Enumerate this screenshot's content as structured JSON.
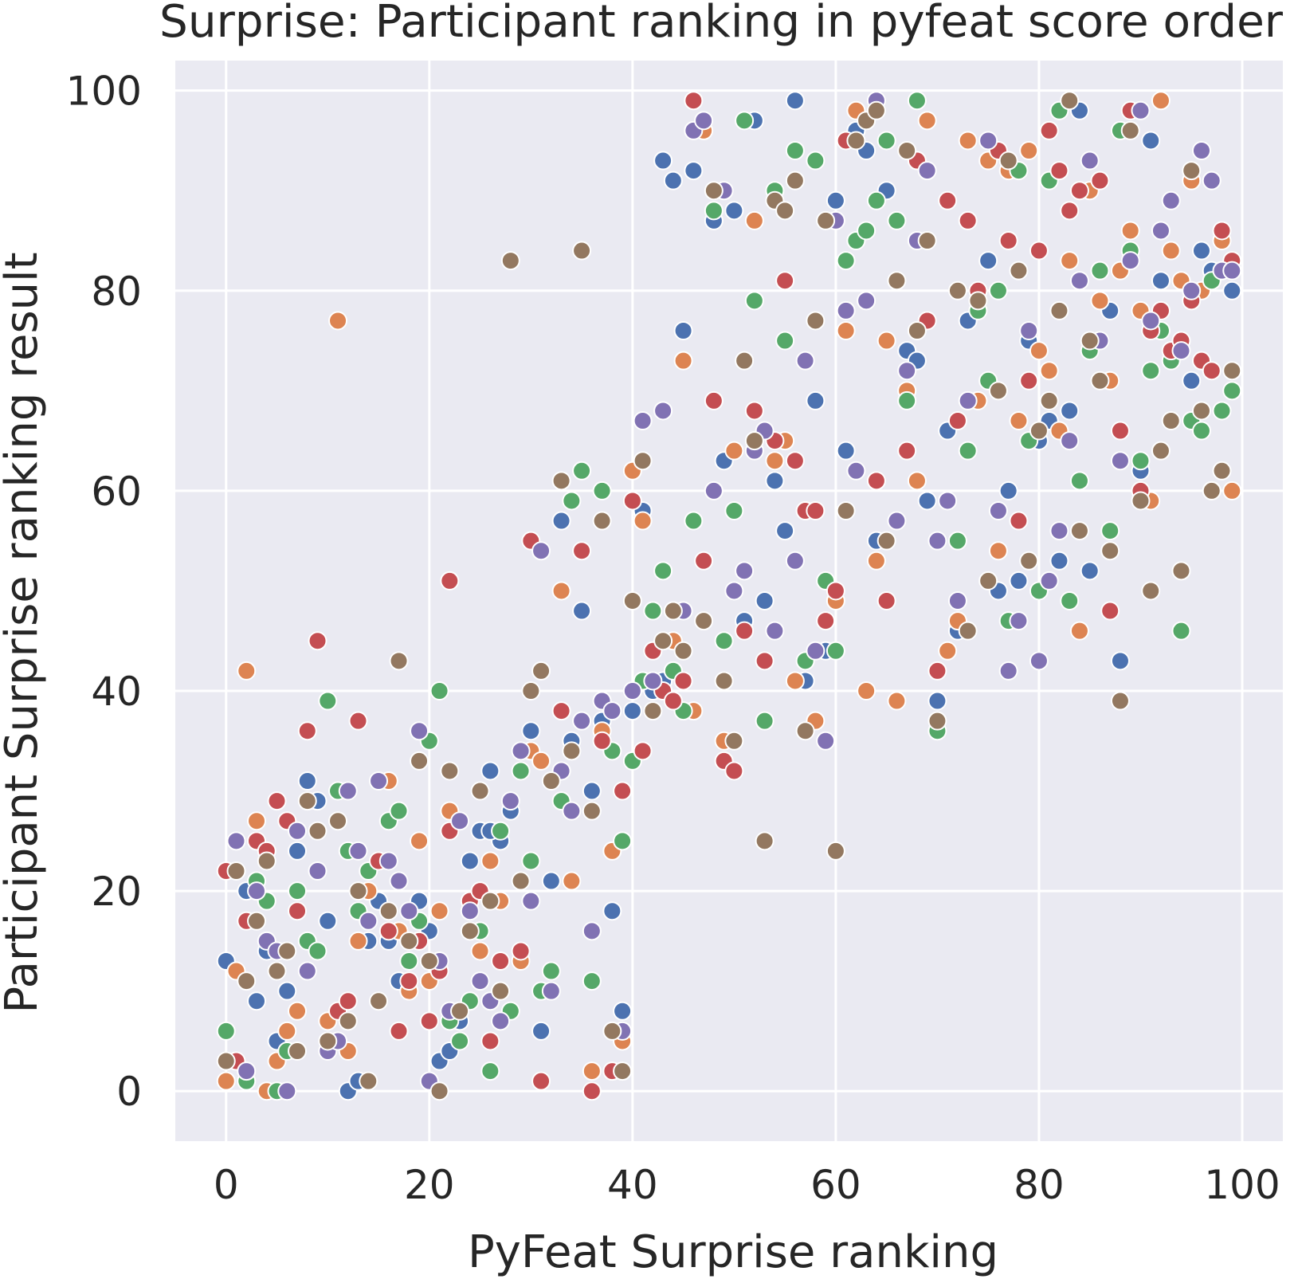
{
  "chart_data": {
    "type": "scatter",
    "title": "Surprise: Participant ranking in pyfeat score order",
    "xlabel": "PyFeat Surprise ranking",
    "ylabel": "Participant Surprise ranking result",
    "xlim": [
      -5,
      104
    ],
    "ylim": [
      -5,
      103
    ],
    "xticks": [
      0,
      20,
      40,
      60,
      80,
      100
    ],
    "yticks": [
      0,
      20,
      40,
      60,
      80,
      100
    ],
    "grid": true,
    "legend": "none",
    "colors": [
      "#4c72b0",
      "#dd8452",
      "#55a868",
      "#c44e52",
      "#8172b3",
      "#937860"
    ],
    "series": [
      {
        "color": "#4c72b0",
        "x": [
          0,
          2,
          3,
          4,
          6,
          5,
          8,
          9,
          10,
          12,
          13,
          15,
          16,
          17,
          20,
          21,
          22,
          23,
          24,
          25,
          26,
          27,
          28,
          30,
          31,
          32,
          33,
          34,
          36,
          37,
          38,
          39,
          41,
          42,
          43,
          44,
          45,
          46,
          48,
          49,
          50,
          51,
          52,
          53,
          54,
          55,
          57,
          58,
          59,
          60,
          61,
          62,
          63,
          64,
          65,
          67,
          68,
          69,
          70,
          71,
          72,
          73,
          75,
          76,
          77,
          78,
          79,
          80,
          81,
          82,
          83,
          84,
          85,
          87,
          88,
          90,
          91,
          92,
          95,
          96,
          97,
          99,
          35,
          43,
          44,
          52,
          56,
          40,
          26,
          7,
          14,
          19
        ],
        "y": [
          13,
          20,
          9,
          14,
          10,
          5,
          31,
          29,
          17,
          0,
          1,
          19,
          15,
          11,
          16,
          3,
          4,
          7,
          23,
          26,
          32,
          25,
          28,
          36,
          6,
          21,
          57,
          35,
          30,
          37,
          18,
          8,
          58,
          40,
          41,
          42,
          76,
          92,
          87,
          63,
          88,
          47,
          97,
          49,
          61,
          56,
          41,
          69,
          44,
          89,
          64,
          96,
          94,
          55,
          90,
          74,
          73,
          59,
          39,
          66,
          46,
          77,
          83,
          50,
          60,
          51,
          75,
          65,
          67,
          53,
          68,
          98,
          52,
          78,
          43,
          62,
          95,
          81,
          71,
          84,
          82,
          80,
          48,
          93,
          91,
          65,
          99,
          38,
          26,
          24,
          15,
          19
        ]
      },
      {
        "color": "#dd8452",
        "x": [
          0,
          1,
          2,
          3,
          5,
          6,
          7,
          10,
          12,
          13,
          14,
          16,
          17,
          18,
          19,
          20,
          21,
          22,
          25,
          26,
          27,
          29,
          30,
          31,
          33,
          34,
          36,
          37,
          38,
          39,
          40,
          41,
          45,
          47,
          49,
          50,
          52,
          54,
          55,
          56,
          57,
          58,
          60,
          61,
          62,
          63,
          64,
          65,
          66,
          67,
          68,
          69,
          71,
          72,
          73,
          74,
          75,
          76,
          77,
          78,
          79,
          80,
          81,
          82,
          83,
          84,
          85,
          86,
          87,
          88,
          89,
          90,
          91,
          92,
          93,
          94,
          95,
          96,
          97,
          98,
          99,
          11,
          4,
          44,
          46
        ],
        "y": [
          1,
          12,
          42,
          27,
          3,
          6,
          8,
          7,
          4,
          15,
          20,
          31,
          16,
          10,
          25,
          11,
          18,
          28,
          14,
          23,
          19,
          13,
          34,
          33,
          50,
          21,
          2,
          36,
          24,
          5,
          62,
          57,
          73,
          96,
          35,
          64,
          87,
          63,
          65,
          41,
          58,
          37,
          49,
          76,
          98,
          40,
          53,
          75,
          39,
          70,
          61,
          97,
          44,
          47,
          95,
          69,
          93,
          54,
          92,
          67,
          94,
          74,
          72,
          66,
          83,
          46,
          90,
          79,
          71,
          82,
          86,
          78,
          59,
          99,
          84,
          81,
          91,
          80,
          60,
          85,
          60,
          77,
          0,
          45,
          38
        ]
      },
      {
        "color": "#55a868",
        "x": [
          0,
          2,
          3,
          4,
          6,
          7,
          8,
          9,
          10,
          11,
          12,
          13,
          14,
          16,
          17,
          18,
          19,
          20,
          21,
          22,
          23,
          24,
          25,
          26,
          27,
          28,
          29,
          30,
          31,
          32,
          33,
          34,
          35,
          36,
          37,
          38,
          39,
          40,
          41,
          42,
          43,
          44,
          45,
          46,
          48,
          49,
          50,
          51,
          52,
          53,
          54,
          55,
          56,
          57,
          58,
          59,
          60,
          61,
          62,
          63,
          64,
          65,
          66,
          67,
          68,
          70,
          72,
          73,
          74,
          75,
          76,
          77,
          78,
          79,
          80,
          81,
          82,
          83,
          84,
          85,
          86,
          87,
          88,
          89,
          90,
          91,
          92,
          93,
          94,
          95,
          96,
          97,
          98,
          99,
          5
        ],
        "y": [
          6,
          1,
          21,
          19,
          4,
          20,
          15,
          14,
          39,
          30,
          24,
          18,
          22,
          27,
          28,
          13,
          17,
          35,
          40,
          7,
          5,
          9,
          16,
          2,
          26,
          8,
          32,
          23,
          10,
          12,
          29,
          59,
          62,
          11,
          60,
          34,
          25,
          33,
          41,
          48,
          52,
          42,
          38,
          57,
          88,
          45,
          58,
          97,
          79,
          37,
          90,
          75,
          94,
          43,
          93,
          51,
          44,
          83,
          85,
          86,
          89,
          95,
          87,
          69,
          99,
          36,
          55,
          64,
          78,
          71,
          80,
          47,
          92,
          65,
          50,
          91,
          98,
          49,
          61,
          74,
          82,
          56,
          96,
          84,
          63,
          72,
          76,
          73,
          46,
          67,
          66,
          81,
          68,
          70,
          0
        ]
      },
      {
        "color": "#c44e52",
        "x": [
          0,
          1,
          2,
          3,
          4,
          5,
          6,
          7,
          8,
          9,
          11,
          12,
          13,
          15,
          16,
          17,
          18,
          19,
          20,
          21,
          22,
          24,
          25,
          26,
          27,
          29,
          30,
          31,
          33,
          35,
          37,
          38,
          39,
          40,
          41,
          42,
          43,
          44,
          45,
          46,
          47,
          48,
          49,
          50,
          51,
          52,
          53,
          54,
          55,
          56,
          57,
          58,
          59,
          60,
          61,
          64,
          65,
          67,
          68,
          69,
          70,
          71,
          72,
          73,
          74,
          76,
          77,
          78,
          79,
          80,
          81,
          82,
          83,
          84,
          86,
          87,
          88,
          89,
          90,
          91,
          92,
          93,
          94,
          95,
          96,
          97,
          98,
          99,
          22,
          36
        ],
        "y": [
          22,
          3,
          17,
          25,
          24,
          29,
          27,
          18,
          36,
          45,
          8,
          9,
          37,
          23,
          16,
          6,
          11,
          15,
          7,
          12,
          51,
          19,
          20,
          5,
          13,
          14,
          55,
          1,
          38,
          54,
          35,
          2,
          30,
          59,
          34,
          44,
          40,
          39,
          41,
          99,
          53,
          69,
          33,
          32,
          46,
          68,
          43,
          65,
          81,
          63,
          58,
          58,
          47,
          50,
          95,
          61,
          49,
          64,
          93,
          77,
          42,
          89,
          67,
          87,
          80,
          94,
          85,
          57,
          71,
          84,
          96,
          92,
          88,
          90,
          91,
          48,
          66,
          98,
          60,
          76,
          78,
          74,
          75,
          79,
          73,
          72,
          86,
          83,
          26,
          0
        ]
      },
      {
        "color": "#8172b3",
        "x": [
          1,
          2,
          3,
          4,
          5,
          6,
          7,
          8,
          9,
          10,
          11,
          12,
          13,
          14,
          15,
          16,
          17,
          18,
          19,
          20,
          21,
          22,
          23,
          24,
          25,
          26,
          27,
          28,
          29,
          30,
          31,
          32,
          33,
          34,
          35,
          36,
          37,
          38,
          39,
          40,
          41,
          42,
          43,
          44,
          45,
          46,
          47,
          48,
          49,
          50,
          51,
          52,
          53,
          54,
          56,
          57,
          58,
          59,
          60,
          61,
          62,
          63,
          64,
          66,
          67,
          68,
          69,
          70,
          71,
          72,
          73,
          76,
          77,
          78,
          79,
          80,
          81,
          82,
          83,
          84,
          85,
          86,
          88,
          89,
          90,
          91,
          92,
          93,
          94,
          95,
          96,
          97,
          98,
          99,
          75
        ],
        "y": [
          25,
          2,
          20,
          15,
          14,
          0,
          26,
          12,
          22,
          4,
          5,
          30,
          24,
          17,
          31,
          23,
          21,
          18,
          36,
          1,
          13,
          8,
          27,
          18,
          11,
          9,
          7,
          29,
          34,
          19,
          54,
          10,
          32,
          28,
          37,
          16,
          39,
          38,
          6,
          40,
          67,
          41,
          68,
          48,
          48,
          96,
          97,
          60,
          90,
          50,
          52,
          64,
          66,
          46,
          53,
          73,
          44,
          35,
          87,
          78,
          62,
          79,
          99,
          57,
          72,
          85,
          92,
          55,
          59,
          49,
          69,
          58,
          42,
          47,
          76,
          43,
          51,
          56,
          65,
          81,
          93,
          75,
          63,
          83,
          98,
          77,
          86,
          89,
          74,
          80,
          94,
          91,
          82,
          82,
          95
        ]
      },
      {
        "color": "#937860",
        "x": [
          0,
          1,
          2,
          3,
          4,
          5,
          6,
          7,
          8,
          9,
          10,
          11,
          12,
          13,
          14,
          15,
          16,
          17,
          18,
          20,
          21,
          22,
          23,
          24,
          25,
          26,
          27,
          28,
          29,
          31,
          32,
          33,
          34,
          35,
          36,
          37,
          38,
          39,
          40,
          41,
          42,
          43,
          44,
          45,
          47,
          48,
          49,
          50,
          51,
          52,
          53,
          54,
          55,
          56,
          57,
          58,
          59,
          60,
          61,
          62,
          63,
          64,
          65,
          66,
          67,
          68,
          69,
          70,
          72,
          73,
          74,
          75,
          76,
          77,
          78,
          79,
          80,
          81,
          82,
          83,
          84,
          85,
          86,
          87,
          88,
          89,
          90,
          91,
          92,
          93,
          94,
          95,
          96,
          97,
          98,
          99,
          30,
          19
        ],
        "y": [
          3,
          22,
          11,
          17,
          23,
          12,
          14,
          4,
          29,
          26,
          5,
          27,
          7,
          20,
          1,
          9,
          18,
          43,
          15,
          13,
          0,
          32,
          8,
          16,
          30,
          19,
          10,
          83,
          21,
          42,
          31,
          61,
          34,
          84,
          28,
          57,
          6,
          2,
          49,
          63,
          38,
          45,
          48,
          44,
          47,
          90,
          41,
          35,
          73,
          65,
          25,
          89,
          88,
          91,
          36,
          77,
          87,
          24,
          58,
          95,
          97,
          98,
          55,
          81,
          94,
          76,
          85,
          37,
          80,
          46,
          79,
          51,
          70,
          93,
          82,
          53,
          66,
          69,
          78,
          99,
          56,
          75,
          71,
          54,
          39,
          96,
          59,
          50,
          64,
          67,
          52,
          92,
          68,
          60,
          62,
          72,
          40,
          33
        ]
      }
    ]
  }
}
